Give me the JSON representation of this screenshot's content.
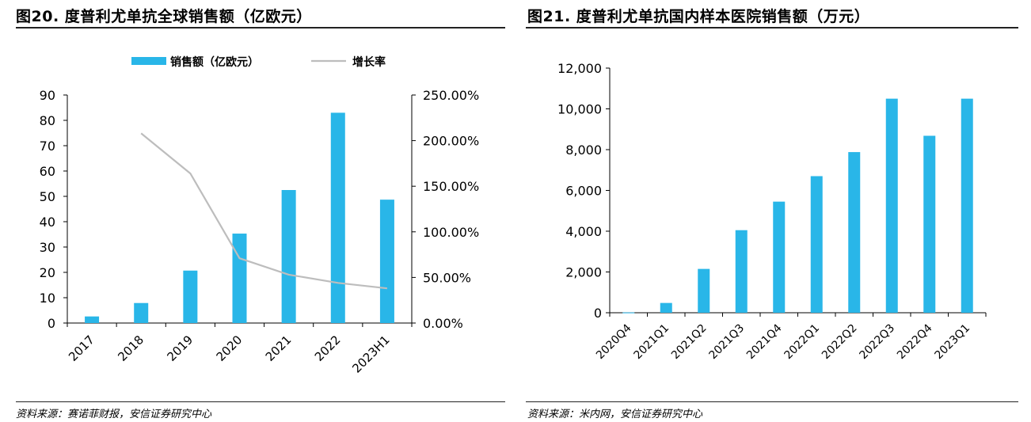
{
  "charts": [
    {
      "figure_title": "图20. 度普利尤单抗全球销售额（亿欧元）",
      "source": "资料来源：赛诺菲财报，安信证券研究中心"
    },
    {
      "figure_title": "图21. 度普利尤单抗国内样本医院销售额（万元）",
      "source": "资料来源：米内网，安信证券研究中心"
    }
  ],
  "chart_data": [
    {
      "type": "bar",
      "title": "图20. 度普利尤单抗全球销售额（亿欧元）",
      "categories": [
        "2017",
        "2018",
        "2019",
        "2020",
        "2021",
        "2022",
        "2023H1"
      ],
      "series": [
        {
          "name": "销售额（亿欧元）",
          "type": "bar",
          "axis": "left",
          "values": [
            2.6,
            7.9,
            20.7,
            35.3,
            52.5,
            83.0,
            48.7
          ],
          "color": "#29b6e8"
        },
        {
          "name": "增长率",
          "type": "line",
          "axis": "right",
          "values": [
            null,
            2.08,
            1.64,
            0.71,
            0.53,
            0.44,
            0.38
          ],
          "color": "#bdbdbd"
        }
      ],
      "ylim": [
        0,
        90
      ],
      "yticks": [
        "0",
        "10",
        "20",
        "30",
        "40",
        "50",
        "60",
        "70",
        "80",
        "90"
      ],
      "y2lim": [
        0,
        2.5
      ],
      "y2ticks": [
        "0.00%",
        "50.00%",
        "100.00%",
        "150.00%",
        "200.00%",
        "250.00%"
      ],
      "legend": "top",
      "grid": false
    },
    {
      "type": "bar",
      "title": "图21. 度普利尤单抗国内样本医院销售额（万元）",
      "categories": [
        "2020Q4",
        "2021Q1",
        "2021Q2",
        "2021Q3",
        "2021Q4",
        "2022Q1",
        "2022Q2",
        "2022Q3",
        "2022Q4",
        "2023Q1"
      ],
      "series": [
        {
          "type": "bar",
          "axis": "left",
          "values": [
            15,
            480,
            2150,
            4050,
            5450,
            6700,
            7880,
            10500,
            8680,
            10500
          ],
          "color": "#29b6e8"
        }
      ],
      "ylim": [
        0,
        12000
      ],
      "yticks": [
        "0",
        "2,000",
        "4,000",
        "6,000",
        "8,000",
        "10,000",
        "12,000"
      ],
      "grid": false
    }
  ]
}
